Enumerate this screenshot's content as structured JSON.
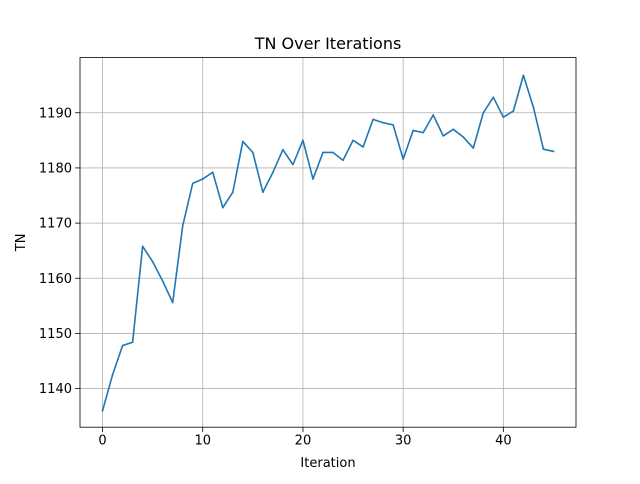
{
  "chart_data": {
    "type": "line",
    "title": "TN Over Iterations",
    "xlabel": "Iteration",
    "ylabel": "TN",
    "xlim": [
      -2.25,
      47.25
    ],
    "ylim": [
      1133.0,
      1200.0
    ],
    "xticks": [
      0,
      10,
      20,
      30,
      40
    ],
    "yticks": [
      1140,
      1150,
      1160,
      1170,
      1180,
      1190
    ],
    "grid": true,
    "line_color": "#1f77b4",
    "series": [
      {
        "x": [
          0,
          1,
          2,
          3,
          4,
          5,
          6,
          7,
          8,
          9,
          10,
          11,
          12,
          13,
          14,
          15,
          16,
          17,
          18,
          19,
          20,
          21,
          22,
          23,
          24,
          25,
          26,
          27,
          28,
          29,
          30,
          31,
          32,
          33,
          34,
          35,
          36,
          37,
          38,
          39,
          40,
          41,
          42,
          43,
          44,
          45
        ],
        "values": [
          1136,
          1142.5,
          1147.8,
          1148.4,
          1165.8,
          1163,
          1159.5,
          1155.6,
          1169.5,
          1177.2,
          1178,
          1179.2,
          1172.8,
          1175.6,
          1184.8,
          1182.8,
          1175.6,
          1179.2,
          1183.3,
          1180.6,
          1185,
          1178,
          1182.8,
          1182.8,
          1181.4,
          1185,
          1183.8,
          1188.8,
          1188.2,
          1187.8,
          1181.6,
          1186.8,
          1186.4,
          1189.6,
          1185.8,
          1187,
          1185.6,
          1183.6,
          1190,
          1192.8,
          1189.2,
          1190.3,
          1196.8,
          1191,
          1183.4,
          1183
        ]
      }
    ]
  }
}
